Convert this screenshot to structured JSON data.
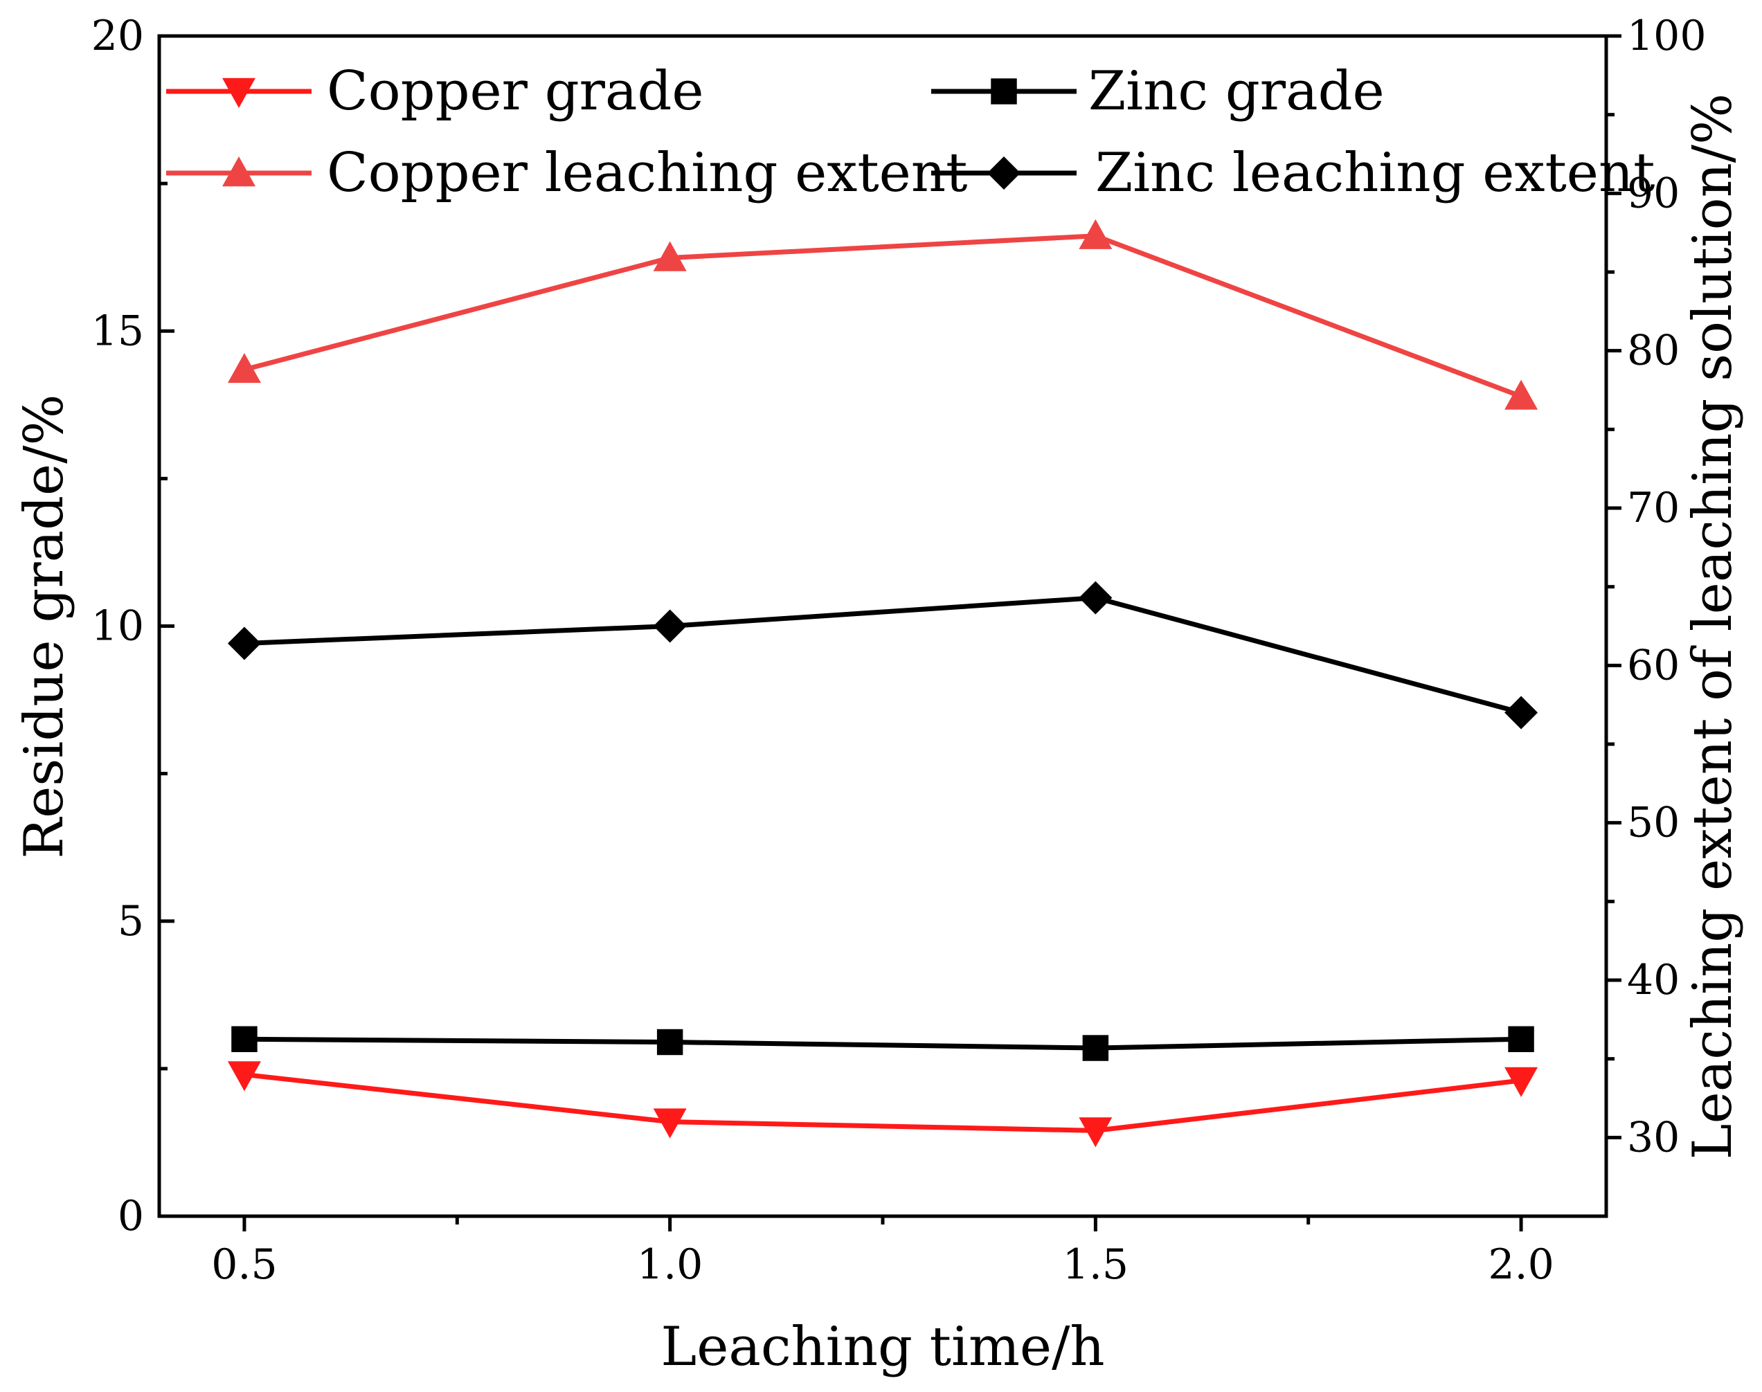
{
  "chart_data": {
    "type": "line",
    "xlabel": "Leaching time/h",
    "ylabel_left": "Residue grade/%",
    "ylabel_right": "Leaching extent of leaching solution/%",
    "x": [
      0.5,
      1.0,
      1.5,
      2.0
    ],
    "x_tick_labels": [
      "0.5",
      "1.0",
      "1.5",
      "2.0"
    ],
    "xlim": [
      0.4,
      2.1
    ],
    "ylim_left": [
      0,
      20
    ],
    "ylim_right": [
      25,
      100
    ],
    "left_ticks": [
      "0",
      "5",
      "10",
      "15",
      "20"
    ],
    "right_ticks": [
      "30",
      "40",
      "50",
      "60",
      "70",
      "80",
      "90",
      "100"
    ],
    "legend_position": "top",
    "series": [
      {
        "name": "Copper grade",
        "axis": "left",
        "marker": "triangle-down",
        "color": "#ff1a1a",
        "values": [
          2.4,
          1.6,
          1.45,
          2.3
        ]
      },
      {
        "name": "Zinc grade",
        "axis": "left",
        "marker": "square",
        "color": "#000000",
        "values": [
          3.0,
          2.95,
          2.85,
          3.0
        ]
      },
      {
        "name": "Copper leaching extent",
        "axis": "right",
        "marker": "triangle-up",
        "color": "#ef4444",
        "values": [
          78.8,
          85.9,
          87.3,
          77.1
        ]
      },
      {
        "name": "Zinc leaching extent",
        "axis": "right",
        "marker": "diamond",
        "color": "#000000",
        "values": [
          61.4,
          62.5,
          64.3,
          57.0
        ]
      }
    ]
  }
}
